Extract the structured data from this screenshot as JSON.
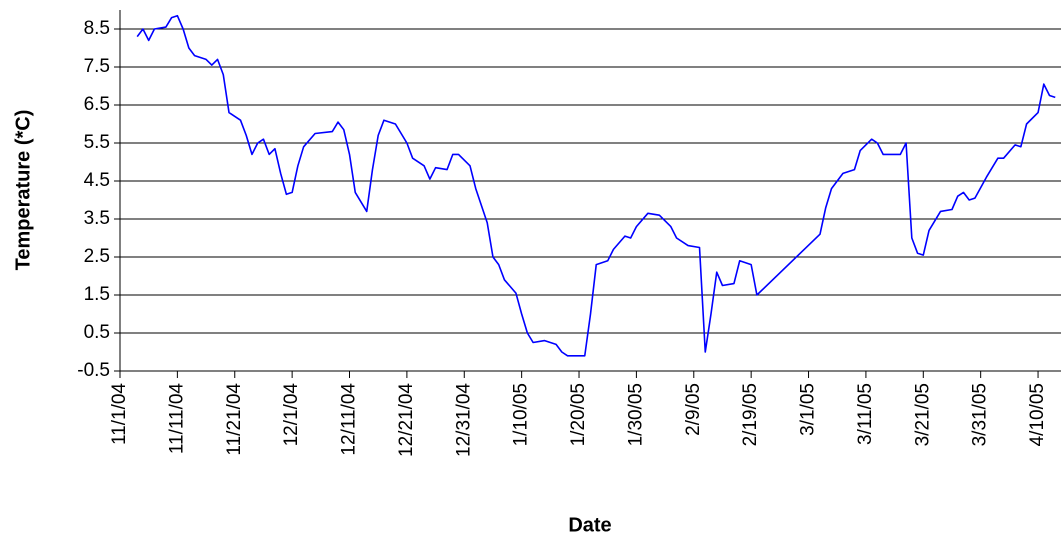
{
  "chart_data": {
    "type": "line",
    "xlabel": "Date",
    "ylabel": "Temperature (*C)",
    "x": [
      "11/4/04",
      "11/5/04",
      "11/6/04",
      "11/7/04",
      "11/9/04",
      "11/10/04",
      "11/11/04",
      "11/12/04",
      "11/13/04",
      "11/14/04",
      "11/16/04",
      "11/17/04",
      "11/18/04",
      "11/19/04",
      "11/20/04",
      "11/22/04",
      "11/23/04",
      "11/24/04",
      "11/25/04",
      "11/26/04",
      "11/27/04",
      "11/28/04",
      "11/29/04",
      "11/30/04",
      "12/1/04",
      "12/2/04",
      "12/3/04",
      "12/5/04",
      "12/8/04",
      "12/9/04",
      "12/10/04",
      "12/11/04",
      "12/12/04",
      "12/14/04",
      "12/15/04",
      "12/16/04",
      "12/17/04",
      "12/19/04",
      "12/21/04",
      "12/22/04",
      "12/24/04",
      "12/25/04",
      "12/26/04",
      "12/28/04",
      "12/29/04",
      "12/30/04",
      "1/1/05",
      "1/2/05",
      "1/4/05",
      "1/5/05",
      "1/6/05",
      "1/7/05",
      "1/9/05",
      "1/10/05",
      "1/11/05",
      "1/12/05",
      "1/14/05",
      "1/16/05",
      "1/17/05",
      "1/18/05",
      "1/21/05",
      "1/22/05",
      "1/23/05",
      "1/25/05",
      "1/26/05",
      "1/28/05",
      "1/29/05",
      "1/30/05",
      "2/1/05",
      "2/3/05",
      "2/5/05",
      "2/6/05",
      "2/8/05",
      "2/10/05",
      "2/11/05",
      "2/12/05",
      "2/13/05",
      "2/14/05",
      "2/16/05",
      "2/17/05",
      "2/19/05",
      "2/20/05",
      "3/3/05",
      "3/4/05",
      "3/5/05",
      "3/7/05",
      "3/9/05",
      "3/10/05",
      "3/12/05",
      "3/13/05",
      "3/14/05",
      "3/17/05",
      "3/18/05",
      "3/19/05",
      "3/20/05",
      "3/21/05",
      "3/22/05",
      "3/24/05",
      "3/26/05",
      "3/27/05",
      "3/28/05",
      "3/29/05",
      "3/30/05",
      "4/1/05",
      "4/3/05",
      "4/4/05",
      "4/6/05",
      "4/7/05",
      "4/8/05",
      "4/10/05",
      "4/11/05",
      "4/12/05",
      "4/13/05"
    ],
    "values": [
      8.3,
      8.5,
      8.2,
      8.5,
      8.55,
      8.8,
      8.85,
      8.5,
      8.0,
      7.8,
      7.7,
      7.55,
      7.7,
      7.3,
      6.3,
      6.1,
      5.7,
      5.2,
      5.5,
      5.6,
      5.2,
      5.35,
      4.7,
      4.15,
      4.2,
      4.9,
      5.4,
      5.75,
      5.8,
      6.05,
      5.85,
      5.2,
      4.2,
      3.7,
      4.8,
      5.7,
      6.1,
      6.0,
      5.5,
      5.1,
      4.9,
      4.55,
      4.85,
      4.8,
      5.2,
      5.2,
      4.9,
      4.3,
      3.4,
      2.5,
      2.3,
      1.9,
      1.55,
      1.0,
      0.5,
      0.25,
      0.3,
      0.2,
      0.0,
      -0.1,
      -0.1,
      1.0,
      2.3,
      2.4,
      2.7,
      3.05,
      3.0,
      3.3,
      3.65,
      3.6,
      3.3,
      3.0,
      2.8,
      2.75,
      0.0,
      1.0,
      2.1,
      1.75,
      1.8,
      2.4,
      2.3,
      1.5,
      3.1,
      3.8,
      4.3,
      4.7,
      4.8,
      5.3,
      5.6,
      5.5,
      5.2,
      5.2,
      5.5,
      3.0,
      2.6,
      2.55,
      3.2,
      3.7,
      3.75,
      4.1,
      4.2,
      4.0,
      4.05,
      4.6,
      5.1,
      5.1,
      5.45,
      5.4,
      6.0,
      6.3,
      7.05,
      6.75,
      6.7
    ],
    "color": "#0000ff",
    "xlim": [
      "11/1/04",
      "4/14/05"
    ],
    "xticks": [
      "11/1/04",
      "11/11/04",
      "11/21/04",
      "12/1/04",
      "12/11/04",
      "12/21/04",
      "12/31/04",
      "1/10/05",
      "1/20/05",
      "1/30/05",
      "2/9/05",
      "2/19/05",
      "3/1/05",
      "3/11/05",
      "3/21/05",
      "3/31/05",
      "4/10/05"
    ],
    "ylim": [
      -0.5,
      9.0
    ],
    "yticks": [
      -0.5,
      0.5,
      1.5,
      2.5,
      3.5,
      4.5,
      5.5,
      6.5,
      7.5,
      8.5
    ],
    "grid": true
  }
}
